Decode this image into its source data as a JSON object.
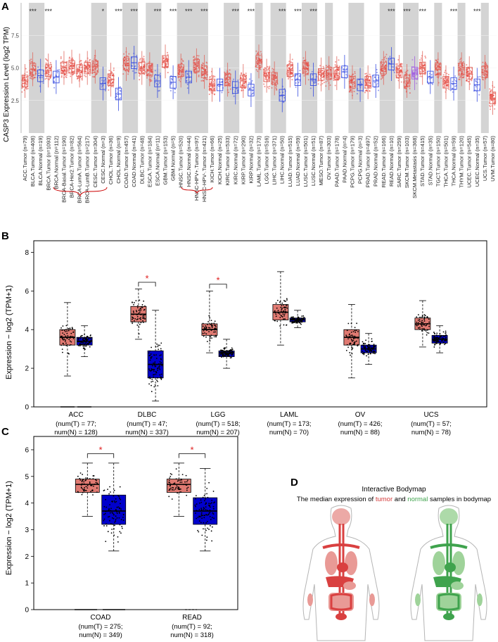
{
  "chart_data": [
    {
      "panel": "A",
      "type": "boxplot",
      "ylabel": "CASP3 Expression Level (log2 TPM)",
      "ylim": [
        0,
        10
      ],
      "yticks": [
        "2.5",
        "5.0",
        "7.5"
      ],
      "categories": [
        {
          "label": "ACC.Tumor (n=79)",
          "g": "T",
          "med": 4.0,
          "sig": ""
        },
        {
          "label": "BLCA.Tumor (n=408)",
          "g": "T",
          "med": 4.9,
          "sig": "***"
        },
        {
          "label": "BLCA.Normal (n=19)",
          "g": "N",
          "med": 4.4,
          "sig": ""
        },
        {
          "label": "BRCA.Tumor (n=1093)",
          "g": "T",
          "med": 4.8,
          "sig": "***"
        },
        {
          "label": "BRCA.Normal (n=112)",
          "g": "N",
          "med": 4.3,
          "sig": ""
        },
        {
          "label": "BRCA-Basal.Tumor (n=190)",
          "g": "T",
          "med": 5.0,
          "sig": ""
        },
        {
          "label": "BRCA-Her2.Tumor (n=82)",
          "g": "T",
          "med": 5.1,
          "sig": ""
        },
        {
          "label": "BRCA-LumA.Tumor (n=564)",
          "g": "T",
          "med": 4.8,
          "sig": ""
        },
        {
          "label": "BRCA-LumB.Tumor (n=217)",
          "g": "T",
          "med": 5.0,
          "sig": ""
        },
        {
          "label": "CESC.Tumor (n=304)",
          "g": "T",
          "med": 5.1,
          "sig": ""
        },
        {
          "label": "CESC.Normal (n=3)",
          "g": "N",
          "med": 3.8,
          "sig": "*"
        },
        {
          "label": "CHOL.Tumor (n=36)",
          "g": "T",
          "med": 4.1,
          "sig": ""
        },
        {
          "label": "CHOL.Normal (n=9)",
          "g": "N",
          "med": 3.0,
          "sig": "***"
        },
        {
          "label": "COAD.Tumor (n=457)",
          "g": "T",
          "med": 5.3,
          "sig": ""
        },
        {
          "label": "COAD.Normal (n=41)",
          "g": "N",
          "med": 5.4,
          "sig": "***"
        },
        {
          "label": "DLBC.Tumor (n=48)",
          "g": "T",
          "med": 5.0,
          "sig": ""
        },
        {
          "label": "ESCA.Tumor (n=184)",
          "g": "T",
          "med": 4.9,
          "sig": ""
        },
        {
          "label": "ESCA.Normal (n=11)",
          "g": "N",
          "med": 4.0,
          "sig": "***"
        },
        {
          "label": "GBM.Tumor (n=153)",
          "g": "T",
          "med": 5.5,
          "sig": ""
        },
        {
          "label": "GBM.Normal (n=5)",
          "g": "N",
          "med": 3.9,
          "sig": "***"
        },
        {
          "label": "HNSC.Tumor (n=520)",
          "g": "T",
          "med": 4.8,
          "sig": ""
        },
        {
          "label": "HNSC.Normal (n=44)",
          "g": "N",
          "med": 4.3,
          "sig": "***"
        },
        {
          "label": "HNSC-HPV+.Tumor (n=97)",
          "g": "T",
          "med": 5.2,
          "sig": ""
        },
        {
          "label": "HNSC-HPV-.Tumor (n=421)",
          "g": "T",
          "med": 4.7,
          "sig": "***"
        },
        {
          "label": "KICH.Tumor (n=66)",
          "g": "T",
          "med": 3.7,
          "sig": ""
        },
        {
          "label": "KICH.Normal (n=25)",
          "g": "N",
          "med": 3.7,
          "sig": ""
        },
        {
          "label": "KIRC.Tumor (n=533)",
          "g": "T",
          "med": 4.1,
          "sig": ""
        },
        {
          "label": "KIRC.Normal (n=72)",
          "g": "N",
          "med": 3.5,
          "sig": "***"
        },
        {
          "label": "KIRP.Tumor (n=290)",
          "g": "T",
          "med": 4.0,
          "sig": ""
        },
        {
          "label": "KIRP.Normal (n=32)",
          "g": "N",
          "med": 3.3,
          "sig": "***"
        },
        {
          "label": "LAML.Tumor (n=173)",
          "g": "T",
          "med": 5.5,
          "sig": ""
        },
        {
          "label": "LGG.Tumor (n=516)",
          "g": "T",
          "med": 4.4,
          "sig": ""
        },
        {
          "label": "LIHC.Tumor (n=371)",
          "g": "T",
          "med": 4.2,
          "sig": ""
        },
        {
          "label": "LIHC.Normal (n=50)",
          "g": "N",
          "med": 2.9,
          "sig": "***"
        },
        {
          "label": "LUAD.Tumor (n=515)",
          "g": "T",
          "med": 4.8,
          "sig": ""
        },
        {
          "label": "LUAD.Normal (n=59)",
          "g": "N",
          "med": 4.1,
          "sig": "***"
        },
        {
          "label": "LUSC.Tumor (n=501)",
          "g": "T",
          "med": 5.0,
          "sig": ""
        },
        {
          "label": "LUSC.Normal (n=51)",
          "g": "N",
          "med": 4.1,
          "sig": "***"
        },
        {
          "label": "MESO.Tumor (n=87)",
          "g": "T",
          "med": 4.5,
          "sig": ""
        },
        {
          "label": "OV.Tumor (n=303)",
          "g": "T",
          "med": 4.6,
          "sig": ""
        },
        {
          "label": "PAAD.Tumor (n=178)",
          "g": "T",
          "med": 4.6,
          "sig": ""
        },
        {
          "label": "PAAD.Normal (n=4)",
          "g": "N",
          "med": 4.7,
          "sig": ""
        },
        {
          "label": "PCPG.Tumor (n=179)",
          "g": "T",
          "med": 3.9,
          "sig": ""
        },
        {
          "label": "PCPG.Normal (n=3)",
          "g": "N",
          "med": 3.7,
          "sig": ""
        },
        {
          "label": "PRAD.Tumor (n=497)",
          "g": "T",
          "med": 3.9,
          "sig": ""
        },
        {
          "label": "PRAD.Normal (n=52)",
          "g": "N",
          "med": 4.0,
          "sig": ""
        },
        {
          "label": "READ.Tumor (n=166)",
          "g": "T",
          "med": 5.0,
          "sig": ""
        },
        {
          "label": "READ.Normal (n=10)",
          "g": "N",
          "med": 5.3,
          "sig": "***"
        },
        {
          "label": "SARC.Tumor (n=259)",
          "g": "T",
          "med": 4.7,
          "sig": ""
        },
        {
          "label": "SKCM.Tumor (n=103)",
          "g": "T",
          "med": 4.0,
          "sig": "***"
        },
        {
          "label": "SKCM.Metastasis (n=368)",
          "g": "M",
          "med": 4.6,
          "sig": ""
        },
        {
          "label": "STAD.Tumor (n=415)",
          "g": "T",
          "med": 5.0,
          "sig": "***"
        },
        {
          "label": "STAD.Normal (n=35)",
          "g": "N",
          "med": 4.3,
          "sig": ""
        },
        {
          "label": "TGCT.Tumor (n=150)",
          "g": "T",
          "med": 4.9,
          "sig": ""
        },
        {
          "label": "THCA.Tumor (n=501)",
          "g": "T",
          "med": 3.9,
          "sig": ""
        },
        {
          "label": "THCA.Normal (n=59)",
          "g": "N",
          "med": 3.8,
          "sig": "***"
        },
        {
          "label": "THYM.Tumor (n=120)",
          "g": "T",
          "med": 4.9,
          "sig": ""
        },
        {
          "label": "UCEC.Tumor (n=545)",
          "g": "T",
          "med": 4.6,
          "sig": ""
        },
        {
          "label": "UCEC.Normal (n=35)",
          "g": "N",
          "med": 3.7,
          "sig": "***"
        },
        {
          "label": "UCS.Tumor (n=57)",
          "g": "T",
          "med": 4.7,
          "sig": ""
        },
        {
          "label": "UVM.Tumor (n=80)",
          "g": "T",
          "med": 2.7,
          "sig": ""
        }
      ]
    },
    {
      "panel": "B",
      "type": "boxplot",
      "ylabel": "Expression − log2 (TPM+1)",
      "ylim": [
        0,
        8.6
      ],
      "yticks": [
        "0",
        "2",
        "4",
        "6",
        "8"
      ],
      "groups": [
        {
          "name": "ACC",
          "n1": "(num(T) = 77;",
          "n2": "num(N) = 128)",
          "T": [
            1.6,
            3.2,
            3.6,
            4.0,
            5.4
          ],
          "N": [
            2.6,
            3.2,
            3.4,
            3.6,
            4.2
          ],
          "sig": false
        },
        {
          "name": "DLBC",
          "n1": "(num(T) = 47;",
          "n2": "num(N) = 337)",
          "T": [
            3.5,
            4.4,
            4.8,
            5.2,
            6.1
          ],
          "N": [
            0.3,
            1.5,
            2.2,
            2.9,
            5.0
          ],
          "sig": true
        },
        {
          "name": "LGG",
          "n1": "(num(T) = 518;",
          "n2": "num(N) = 207)",
          "T": [
            2.8,
            3.7,
            4.0,
            4.3,
            6.0
          ],
          "N": [
            2.0,
            2.6,
            2.8,
            2.9,
            3.5
          ],
          "sig": true
        },
        {
          "name": "LAML",
          "n1": "(num(T) = 173;",
          "n2": "num(N) = 70)",
          "T": [
            3.2,
            4.5,
            4.9,
            5.3,
            7.0
          ],
          "N": [
            4.1,
            4.4,
            4.5,
            4.6,
            5.0
          ],
          "sig": false
        },
        {
          "name": "OV",
          "n1": "(num(T) = 426;",
          "n2": "num(N) = 88)",
          "T": [
            1.5,
            3.2,
            3.6,
            4.0,
            5.3
          ],
          "N": [
            2.2,
            2.8,
            3.0,
            3.2,
            3.8
          ],
          "sig": false
        },
        {
          "name": "UCS",
          "n1": "(num(T) = 57;",
          "n2": "num(N) = 78)",
          "T": [
            3.1,
            4.0,
            4.3,
            4.6,
            5.5
          ],
          "N": [
            2.8,
            3.3,
            3.5,
            3.7,
            4.2
          ],
          "sig": false
        }
      ]
    },
    {
      "panel": "C",
      "type": "boxplot",
      "ylabel": "Expression − log2 (TPM+1)",
      "ylim": [
        0,
        6.5
      ],
      "yticks": [
        "0",
        "1",
        "2",
        "3",
        "4",
        "5",
        "6"
      ],
      "groups": [
        {
          "name": "COAD",
          "n1": "(num(T) = 275;",
          "n2": "num(N) = 349)",
          "T": [
            3.5,
            4.4,
            4.7,
            4.9,
            5.5
          ],
          "N": [
            2.2,
            3.2,
            3.7,
            4.3,
            5.5
          ],
          "sig": true
        },
        {
          "name": "READ",
          "n1": "(num(T) = 92;",
          "n2": "num(N) = 318)",
          "T": [
            3.5,
            4.4,
            4.7,
            4.9,
            5.5
          ],
          "N": [
            2.2,
            3.2,
            3.7,
            4.2,
            5.3
          ],
          "sig": true
        }
      ]
    }
  ],
  "panels": {
    "a": "A",
    "b": "B",
    "c": "C",
    "d": "D"
  },
  "bodymap": {
    "title": "Interactive Bodymap",
    "subtitle_pre": "The median expression of ",
    "tumor": "tumor",
    "and": " and ",
    "normal": "normal",
    "subtitle_post": " samples in bodymap",
    "tumor_color": "#d43c3c",
    "normal_color": "#3fa34d"
  },
  "sig_mark": "*",
  "colors": {
    "tumor": "#e8413a",
    "normal": "#3f51e0",
    "meta": "#a25ee0",
    "boxT": "#e07a72",
    "boxN": "#0000cc",
    "shade": "#d9d9d9"
  }
}
